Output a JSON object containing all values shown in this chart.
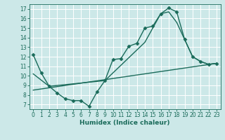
{
  "xlabel": "Humidex (Indice chaleur)",
  "bg_color": "#cce8e8",
  "grid_color": "#ffffff",
  "line_color": "#1a6b5a",
  "xlim": [
    -0.5,
    23.5
  ],
  "ylim": [
    6.5,
    17.5
  ],
  "xticks": [
    0,
    1,
    2,
    3,
    4,
    5,
    6,
    7,
    8,
    9,
    10,
    11,
    12,
    13,
    14,
    15,
    16,
    17,
    18,
    19,
    20,
    21,
    22,
    23
  ],
  "yticks": [
    7,
    8,
    9,
    10,
    11,
    12,
    13,
    14,
    15,
    16,
    17
  ],
  "line1_x": [
    0,
    1,
    2,
    3,
    4,
    5,
    6,
    7,
    8,
    9,
    10,
    11,
    12,
    13,
    14,
    15,
    16,
    17,
    18,
    19,
    20,
    21,
    22,
    23
  ],
  "line1_y": [
    12.2,
    10.3,
    8.9,
    8.2,
    7.6,
    7.4,
    7.4,
    6.8,
    8.3,
    9.5,
    11.7,
    11.8,
    13.1,
    13.4,
    15.0,
    15.2,
    16.5,
    17.1,
    16.7,
    13.8,
    12.0,
    11.5,
    11.2,
    11.3
  ],
  "line2_x": [
    0,
    2,
    9,
    14,
    16,
    17,
    18,
    19,
    20,
    21,
    22,
    23
  ],
  "line2_y": [
    10.2,
    8.9,
    9.5,
    13.5,
    16.5,
    16.7,
    15.6,
    13.8,
    12.0,
    11.5,
    11.2,
    11.3
  ],
  "line3_x": [
    0,
    23
  ],
  "line3_y": [
    8.5,
    11.3
  ],
  "markersize": 2.5,
  "linewidth": 1.0
}
